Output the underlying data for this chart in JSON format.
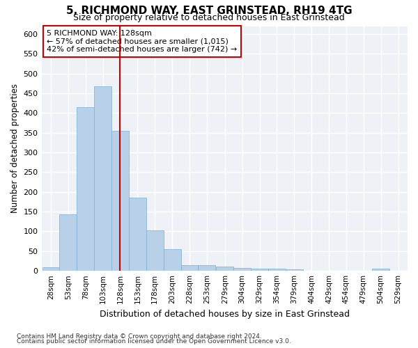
{
  "title": "5, RICHMOND WAY, EAST GRINSTEAD, RH19 4TG",
  "subtitle": "Size of property relative to detached houses in East Grinstead",
  "xlabel": "Distribution of detached houses by size in East Grinstead",
  "ylabel": "Number of detached properties",
  "footnote1": "Contains HM Land Registry data © Crown copyright and database right 2024.",
  "footnote2": "Contains public sector information licensed under the Open Government Licence v3.0.",
  "annotation_line1": "5 RICHMOND WAY: 128sqm",
  "annotation_line2": "← 57% of detached houses are smaller (1,015)",
  "annotation_line3": "42% of semi-detached houses are larger (742) →",
  "bar_color": "#b8d0e8",
  "bar_edge_color": "#7aafd4",
  "vline_color": "#cc0000",
  "vline_x": 128,
  "bin_centers": [
    28,
    53,
    78,
    103,
    128,
    153,
    178,
    203,
    228,
    253,
    279,
    304,
    329,
    354,
    379,
    404,
    429,
    454,
    479,
    504,
    529
  ],
  "bar_heights": [
    10,
    143,
    415,
    468,
    355,
    185,
    103,
    55,
    15,
    15,
    11,
    7,
    5,
    5,
    3,
    0,
    0,
    0,
    0,
    5,
    0
  ],
  "bin_width": 25,
  "ylim": [
    0,
    620
  ],
  "yticks": [
    0,
    50,
    100,
    150,
    200,
    250,
    300,
    350,
    400,
    450,
    500,
    550,
    600
  ],
  "bg_color": "#eef2f7",
  "grid_color": "#ffffff",
  "tick_fontsize": 7.5,
  "ylabel_fontsize": 8.5,
  "xlabel_fontsize": 9,
  "title_fontsize": 11,
  "subtitle_fontsize": 9,
  "footnote_fontsize": 6.5
}
